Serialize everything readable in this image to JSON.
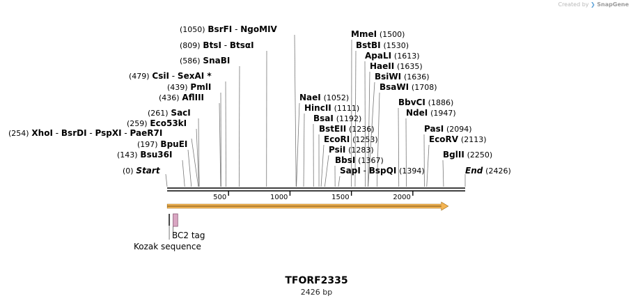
{
  "credit": {
    "prefix": "Created by",
    "brand": "SnapGene"
  },
  "plasmid": {
    "name": "TFORF2335",
    "size_label": "2426 bp",
    "length": 2426
  },
  "axis": {
    "ticks": [
      500,
      1000,
      1500,
      2000
    ]
  },
  "ends": {
    "start": {
      "label": "Start",
      "pos_label": "(0)",
      "pos": 0
    },
    "end": {
      "label": "End",
      "pos_label": "(2426)",
      "pos": 2426
    }
  },
  "left_sites": [
    {
      "pos_label": "(1050)",
      "names": [
        "BsrFI",
        "NgoMIV"
      ],
      "pos": 1050
    },
    {
      "pos_label": "(809)",
      "names": [
        "BtsI",
        "BtsαI"
      ],
      "pos": 809
    },
    {
      "pos_label": "(586)",
      "names": [
        "SnaBI"
      ],
      "pos": 586
    },
    {
      "pos_label": "(479)",
      "names": [
        "CsiI",
        "SexAI *"
      ],
      "pos": 479
    },
    {
      "pos_label": "(439)",
      "names": [
        "PmlI"
      ],
      "pos": 439
    },
    {
      "pos_label": "(436)",
      "names": [
        "AflIII"
      ],
      "pos": 436
    },
    {
      "pos_label": "(261)",
      "names": [
        "SacI"
      ],
      "pos": 261
    },
    {
      "pos_label": "(259)",
      "names": [
        "Eco53kI"
      ],
      "pos": 259
    },
    {
      "pos_label": "(254)",
      "names": [
        "XhoI",
        "BsrDI",
        "PspXI",
        "PaeR7I"
      ],
      "pos": 254
    },
    {
      "pos_label": "(197)",
      "names": [
        "BpuEI"
      ],
      "pos": 197
    },
    {
      "pos_label": "(143)",
      "names": [
        "Bsu36I"
      ],
      "pos": 143
    }
  ],
  "right_sites": [
    {
      "names": [
        "MmeI"
      ],
      "pos_label": "(1500)",
      "pos": 1500
    },
    {
      "names": [
        "BstBI"
      ],
      "pos_label": "(1530)",
      "pos": 1530
    },
    {
      "names": [
        "ApaLI"
      ],
      "pos_label": "(1613)",
      "pos": 1613
    },
    {
      "names": [
        "HaeII"
      ],
      "pos_label": "(1635)",
      "pos": 1635
    },
    {
      "names": [
        "BsiWI"
      ],
      "pos_label": "(1636)",
      "pos": 1636
    },
    {
      "names": [
        "BsaWI"
      ],
      "pos_label": "(1708)",
      "pos": 1708
    },
    {
      "names": [
        "NaeI"
      ],
      "pos_label": "(1052)",
      "pos": 1052
    },
    {
      "names": [
        "HincII"
      ],
      "pos_label": "(1111)",
      "pos": 1111
    },
    {
      "names": [
        "BsaI"
      ],
      "pos_label": "(1192)",
      "pos": 1192
    },
    {
      "names": [
        "BstEII"
      ],
      "pos_label": "(1236)",
      "pos": 1236
    },
    {
      "names": [
        "EcoRI"
      ],
      "pos_label": "(1253)",
      "pos": 1253
    },
    {
      "names": [
        "PsiI"
      ],
      "pos_label": "(1283)",
      "pos": 1283
    },
    {
      "names": [
        "BbsI"
      ],
      "pos_label": "(1367)",
      "pos": 1367
    },
    {
      "names": [
        "SapI",
        "BspQI"
      ],
      "pos_label": "(1394)",
      "pos": 1394
    },
    {
      "names": [
        "BbvCI"
      ],
      "pos_label": "(1886)",
      "pos": 1886
    },
    {
      "names": [
        "NdeI"
      ],
      "pos_label": "(1947)",
      "pos": 1947
    },
    {
      "names": [
        "PasI"
      ],
      "pos_label": "(2094)",
      "pos": 2094
    },
    {
      "names": [
        "EcoRV"
      ],
      "pos_label": "(2113)",
      "pos": 2113
    },
    {
      "names": [
        "BglII"
      ],
      "pos_label": "(2250)",
      "pos": 2250
    }
  ],
  "features": [
    {
      "label": "BC2 tag",
      "start": 37,
      "end": 64,
      "color": "#d9a6c2"
    },
    {
      "label": "Kozak sequence",
      "start": 6,
      "end": 10,
      "color": "#444444"
    }
  ],
  "orf": {
    "start": 1,
    "end": 2300,
    "color": "#f4b452"
  },
  "colors": {
    "backbone": "#000000",
    "site_line": "#777777"
  }
}
